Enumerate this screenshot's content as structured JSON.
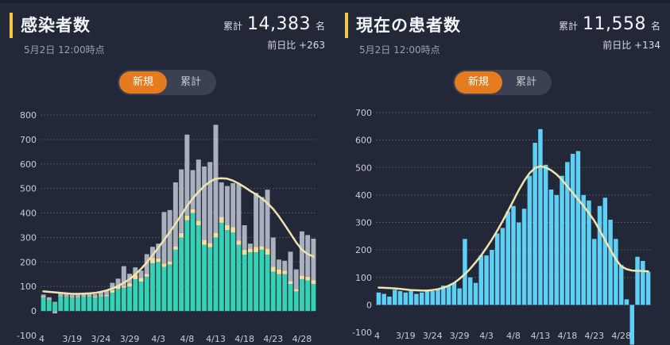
{
  "panels": [
    {
      "title": "感染者数",
      "subtitle": "5月2日 12:00時点",
      "total_label": "累計",
      "total_value": "14,383",
      "total_unit": "名",
      "diff_text": "前日比 +263",
      "toggle": {
        "active": "新規",
        "inactive": "累計"
      }
    },
    {
      "title": "現在の患者数",
      "subtitle": "5月2日 12:00時点",
      "total_label": "累計",
      "total_value": "11,558",
      "total_unit": "名",
      "diff_text": "前日比 +134",
      "toggle": {
        "active": "新規",
        "inactive": "累計"
      }
    }
  ],
  "colors": {
    "bar_teal": "#34d1b5",
    "bar_yellow": "#f2dfa0",
    "bar_gray": "#a9b1bf",
    "bar_cyan": "#5fd0f5",
    "moving_average": "#f0e3b0",
    "grid": "#4a5064",
    "toggle_active": "#e47b1f"
  },
  "chart_data": [
    {
      "type": "bar",
      "stacked": true,
      "title": "感染者数",
      "ylim": [
        -100,
        800
      ],
      "yticks": [
        800,
        700,
        600,
        500,
        400,
        300,
        200,
        100,
        0,
        -100
      ],
      "xtick_labels": [
        "4",
        "3/19",
        "3/24",
        "3/29",
        "4/3",
        "4/8",
        "4/13",
        "4/18",
        "4/23",
        "4/28"
      ],
      "xtick_indices": [
        0,
        5,
        10,
        15,
        20,
        25,
        30,
        35,
        40,
        45
      ],
      "series": [
        {
          "name": "teal",
          "color": "#34d1b5",
          "values": [
            55,
            45,
            35,
            60,
            58,
            55,
            55,
            60,
            60,
            55,
            60,
            60,
            75,
            90,
            95,
            100,
            130,
            120,
            140,
            195,
            200,
            180,
            190,
            250,
            300,
            370,
            400,
            350,
            270,
            260,
            300,
            360,
            330,
            320,
            270,
            230,
            240,
            240,
            250,
            230,
            160,
            150,
            150,
            110,
            80,
            130,
            125,
            110
          ]
        },
        {
          "name": "yellow",
          "color": "#f2dfa0",
          "values": [
            2,
            3,
            2,
            3,
            2,
            3,
            3,
            3,
            3,
            4,
            4,
            5,
            10,
            12,
            8,
            12,
            18,
            15,
            12,
            22,
            15,
            14,
            12,
            15,
            18,
            20,
            15,
            18,
            20,
            18,
            20,
            25,
            20,
            22,
            18,
            20,
            15,
            22,
            15,
            25,
            20,
            20,
            15,
            12,
            10,
            15,
            15,
            15
          ]
        },
        {
          "name": "gray",
          "color": "#a9b1bf",
          "values": [
            10,
            8,
            -10,
            12,
            10,
            8,
            10,
            8,
            10,
            10,
            15,
            20,
            30,
            30,
            80,
            40,
            30,
            30,
            80,
            45,
            60,
            210,
            210,
            260,
            260,
            330,
            160,
            250,
            300,
            330,
            440,
            140,
            160,
            180,
            230,
            100,
            20,
            220,
            200,
            240,
            120,
            40,
            40,
            120,
            80,
            180,
            170,
            170
          ]
        }
      ],
      "moving_average": [
        80,
        78,
        76,
        74,
        72,
        70,
        70,
        71,
        72,
        74,
        78,
        84,
        92,
        102,
        115,
        130,
        150,
        172,
        198,
        228,
        258,
        290,
        322,
        356,
        392,
        428,
        460,
        486,
        510,
        528,
        540,
        542,
        540,
        532,
        520,
        506,
        490,
        476,
        460,
        440,
        416,
        386,
        352,
        316,
        280,
        250,
        232,
        222
      ]
    },
    {
      "type": "bar",
      "title": "現在の患者数",
      "ylim": [
        -100,
        700
      ],
      "yticks": [
        700,
        600,
        500,
        400,
        300,
        200,
        100,
        0,
        -100
      ],
      "xtick_labels": [
        "4",
        "3/19",
        "3/24",
        "3/29",
        "4/3",
        "4/8",
        "4/13",
        "4/18",
        "4/23",
        "4/28"
      ],
      "xtick_indices": [
        0,
        5,
        10,
        15,
        20,
        25,
        30,
        35,
        40,
        45
      ],
      "series": [
        {
          "name": "new",
          "color": "#5fd0f5",
          "values": [
            45,
            40,
            30,
            55,
            50,
            45,
            50,
            40,
            45,
            55,
            50,
            55,
            70,
            70,
            80,
            60,
            240,
            100,
            80,
            180,
            180,
            200,
            260,
            280,
            340,
            360,
            300,
            350,
            470,
            590,
            640,
            510,
            420,
            400,
            470,
            520,
            550,
            560,
            400,
            380,
            240,
            360,
            390,
            310,
            240,
            145,
            20,
            -145,
            175,
            160,
            120
          ]
        }
      ],
      "moving_average": [
        63,
        62,
        61,
        60,
        58,
        56,
        54,
        53,
        52,
        52,
        54,
        57,
        62,
        70,
        80,
        95,
        112,
        132,
        155,
        180,
        208,
        238,
        270,
        305,
        342,
        380,
        418,
        452,
        480,
        498,
        505,
        500,
        490,
        475,
        455,
        432,
        408,
        384,
        360,
        334,
        306,
        272,
        236,
        200,
        166,
        140,
        130,
        125,
        124,
        123,
        122
      ]
    }
  ]
}
